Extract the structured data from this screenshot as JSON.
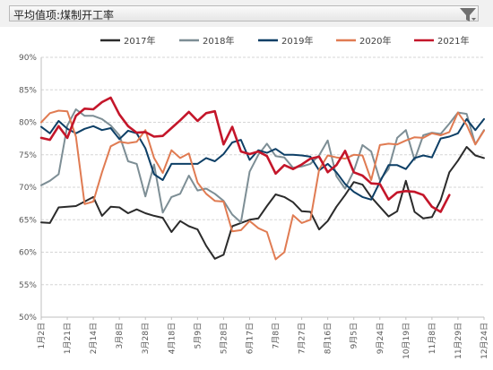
{
  "header": {
    "title": "平均值项:煤制开工率",
    "filter_icon": "filter-icon"
  },
  "chart_data": {
    "type": "line",
    "ylim": [
      50,
      90
    ],
    "yticks": [
      "50%",
      "55%",
      "60%",
      "65%",
      "70%",
      "75%",
      "80%",
      "85%",
      "90%"
    ],
    "grid": true,
    "legend": "top",
    "x_labels": [
      "1月2日",
      "1月21日",
      "2月14日",
      "3月8日",
      "3月28日",
      "4月18日",
      "5月9日",
      "5月28日",
      "6月17日",
      "7月8日",
      "7月27日",
      "8月16日",
      "9月5日",
      "9月24日",
      "10月19日",
      "11月8日",
      "11月29日",
      "12月24日"
    ],
    "x_count": 52,
    "series": [
      {
        "name": "2017年",
        "color": "#2b2b2b",
        "values": [
          64.6,
          64.5,
          66.9,
          67,
          67.1,
          67.8,
          68.5,
          65.6,
          67,
          66.9,
          66,
          66.6,
          66,
          65.6,
          65.3,
          63.1,
          64.8,
          64,
          63.5,
          61,
          59,
          59.6,
          64,
          64.5,
          65,
          65.2,
          67.1,
          68.9,
          68.5,
          67.7,
          66.3,
          66.2,
          63.5,
          64.8,
          67,
          68.8,
          70.8,
          70.4,
          68.5,
          67,
          65.5,
          66.3,
          71,
          66.2,
          65.2,
          65.4,
          68,
          72.3,
          74.1,
          76.2,
          74.9,
          74.5
        ]
      },
      {
        "name": "2018年",
        "color": "#7d8e95",
        "values": [
          70.3,
          71,
          72,
          79.5,
          82,
          81,
          81,
          80.5,
          79.5,
          78,
          74,
          73.6,
          68.6,
          73.5,
          66.1,
          68.5,
          69,
          71.8,
          69.5,
          69.8,
          69,
          67.9,
          65.8,
          64.6,
          72.4,
          75,
          76.7,
          74.8,
          74.6,
          73,
          73.2,
          73.6,
          74.9,
          77.2,
          71.7,
          69.8,
          72.5,
          76.5,
          75.5,
          71.1,
          72.8,
          77.6,
          78.8,
          74.2,
          78,
          78.4,
          78.2,
          79.8,
          81.5,
          81.3,
          76.6,
          78.8
        ]
      },
      {
        "name": "2019年",
        "color": "#0d3f66",
        "values": [
          79.3,
          78.3,
          80.2,
          79,
          78.3,
          79,
          79.4,
          78.8,
          79.1,
          77.4,
          78.7,
          78.3,
          76,
          72,
          71.1,
          73.6,
          73.6,
          73.6,
          73.6,
          74.5,
          74,
          75.1,
          76.9,
          77.3,
          74.2,
          75.7,
          75.3,
          75.9,
          75,
          75,
          74.9,
          74.7,
          72.6,
          73.6,
          72.3,
          70.5,
          69.3,
          68.5,
          68.1,
          70.8,
          73.4,
          73.4,
          72.8,
          74.5,
          74.9,
          74.6,
          77.5,
          77.8,
          78.3,
          80.5,
          78.8,
          80.5
        ]
      },
      {
        "name": "2020年",
        "color": "#e07b52",
        "values": [
          80,
          81.4,
          81.8,
          81.7,
          77.8,
          67.4,
          67.8,
          72.3,
          76.3,
          77,
          76.8,
          77,
          78.8,
          74.5,
          72.2,
          75.7,
          74.5,
          75.2,
          70.7,
          69,
          67.9,
          67.8,
          63.2,
          63.4,
          64.8,
          63.7,
          63.1,
          58.9,
          60,
          65.7,
          64.5,
          65,
          72.7,
          74.9,
          74.6,
          74.4,
          75,
          74.9,
          71.1,
          76.5,
          76.7,
          76.6,
          77.2,
          77.7,
          77.6,
          78.3,
          78,
          78.5,
          81.5,
          79.6,
          76.6,
          78.7
        ]
      },
      {
        "name": "2021年",
        "color": "#c4162a",
        "values": [
          77.6,
          77.3,
          79.4,
          77.6,
          81,
          82.1,
          82,
          83.1,
          83.8,
          81.2,
          79.4,
          78.4,
          78.5,
          77.8,
          77.9,
          79.1,
          80.3,
          81.6,
          80.2,
          81.4,
          81.7,
          76.6,
          79.3,
          75.5,
          75.1,
          75.5,
          74.8,
          72.1,
          73.4,
          72.8,
          73.5,
          74.4,
          74.7,
          72.3,
          73.4,
          75.6,
          72.3,
          71.8,
          70.6,
          70.5,
          68.1,
          69.2,
          69.4,
          69.3,
          68.8,
          67,
          66.2,
          68.8,
          null,
          null,
          null,
          null
        ]
      }
    ]
  }
}
